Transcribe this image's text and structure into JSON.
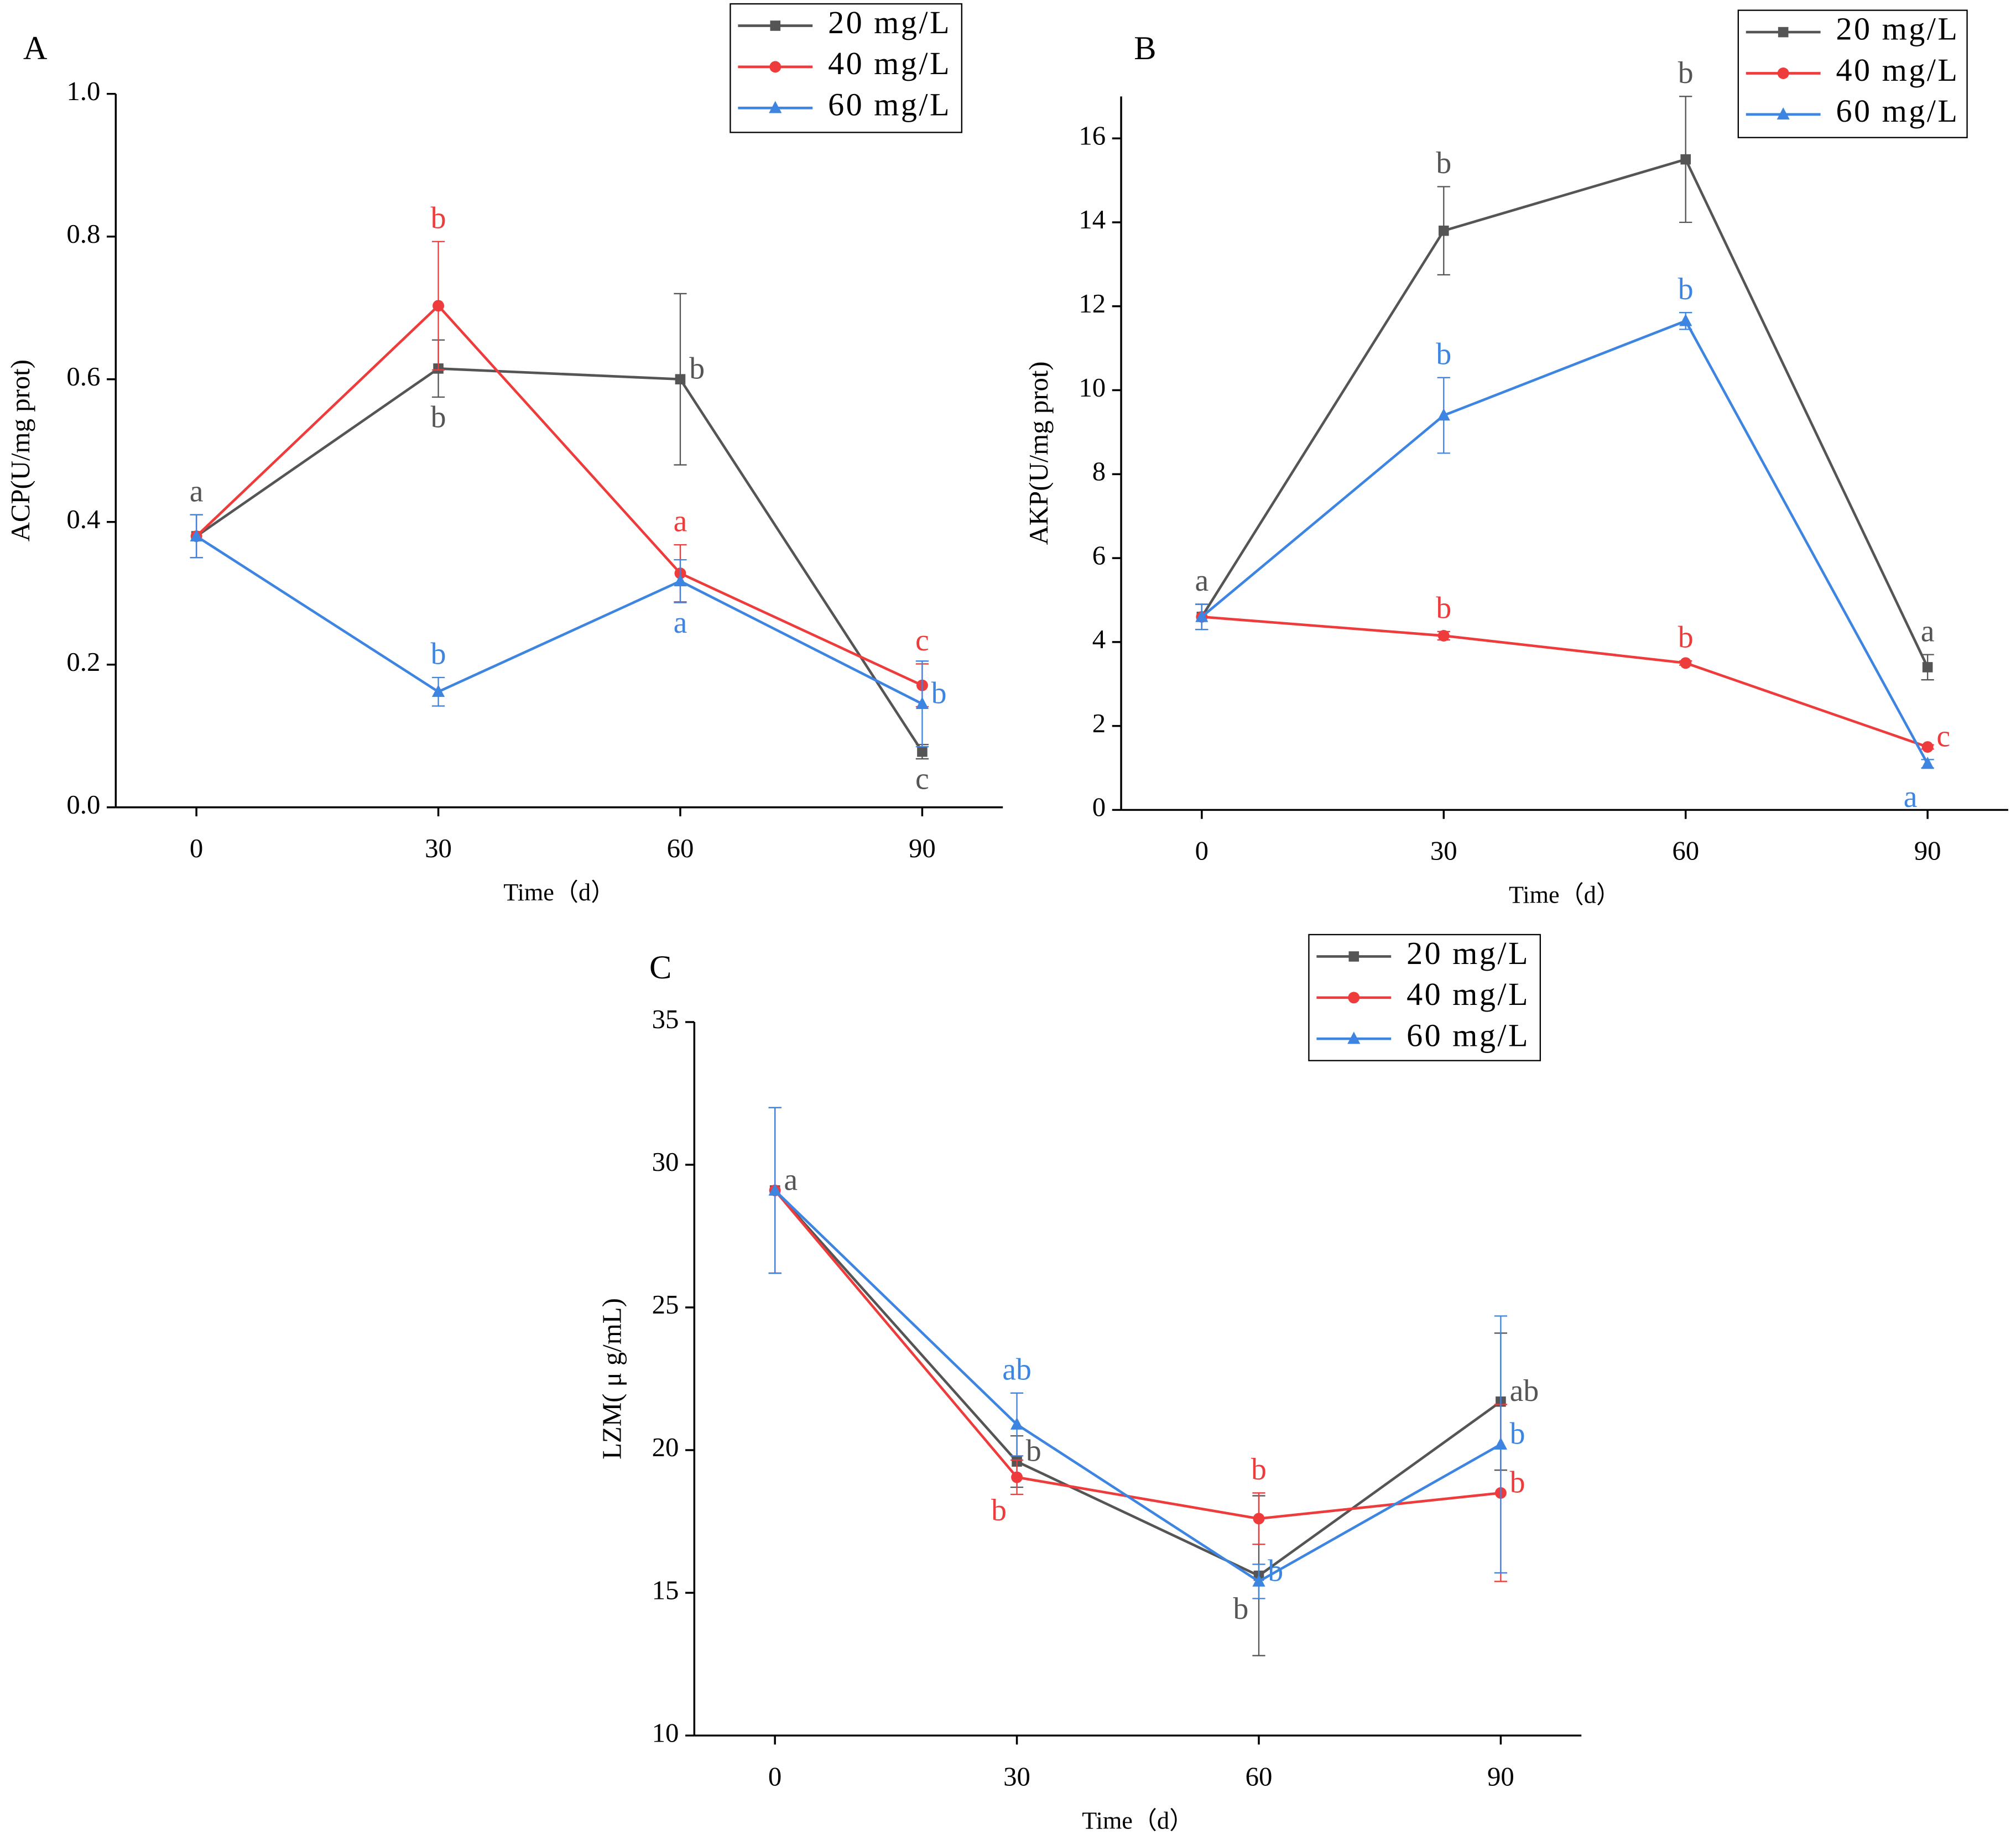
{
  "chart_data": [
    {
      "type": "line",
      "panel_label": "A",
      "ylabel": "ACP(U/mg prot)",
      "xlabel": "Time（d）",
      "x": [
        0,
        30,
        60,
        90
      ],
      "xlim": [
        -10,
        100
      ],
      "xticks": [
        0,
        30,
        60,
        90
      ],
      "ylim": [
        0,
        1
      ],
      "yticks": [
        {
          "value": 0,
          "label": "0.0"
        },
        0.2,
        0.4,
        0.6,
        0.8,
        {
          "value": 1,
          "label": "1.0"
        }
      ],
      "legend": "top-right",
      "series": [
        {
          "name": "20 mg/L",
          "color": "#555555",
          "marker": "square",
          "values": [
            0.38,
            0.615,
            0.6,
            0.078
          ],
          "errors": [
            0.03,
            0.04,
            0.12,
            0.01
          ],
          "labels": [
            "a",
            "b",
            "b",
            "c"
          ]
        },
        {
          "name": "40 mg/L",
          "color": "#ee3b3b",
          "marker": "circle",
          "values": [
            0.38,
            0.703,
            0.328,
            0.171
          ],
          "errors": [
            0.03,
            0.09,
            0.04,
            0.03
          ],
          "labels": [
            null,
            "b",
            "a",
            "c"
          ]
        },
        {
          "name": "60 mg/L",
          "color": "#3d85e0",
          "marker": "triangle",
          "values": [
            0.38,
            0.162,
            0.317,
            0.145
          ],
          "errors": [
            0.03,
            0.02,
            0.03,
            0.06
          ],
          "labels": [
            null,
            "b",
            "a",
            "b"
          ]
        }
      ]
    },
    {
      "type": "line",
      "panel_label": "B",
      "ylabel": "AKP(U/mg prot)",
      "xlabel": "Time（d）",
      "x": [
        0,
        30,
        60,
        90
      ],
      "xlim": [
        -10,
        100
      ],
      "xticks": [
        0,
        30,
        60,
        90
      ],
      "ylim": [
        0,
        17
      ],
      "yticks": [
        0,
        2,
        4,
        6,
        8,
        10,
        12,
        14,
        16
      ],
      "legend": "top-right",
      "series": [
        {
          "name": "20 mg/L",
          "color": "#555555",
          "marker": "square",
          "values": [
            4.6,
            13.8,
            15.5,
            3.4
          ],
          "errors": [
            0.3,
            1.05,
            1.5,
            0.3
          ],
          "labels": [
            "a",
            "b",
            "b",
            "a"
          ]
        },
        {
          "name": "40 mg/L",
          "color": "#ee3b3b",
          "marker": "circle",
          "values": [
            4.6,
            4.15,
            3.5,
            1.5
          ],
          "errors": [
            0.3,
            0.1,
            0.05,
            0.05
          ],
          "labels": [
            null,
            "b",
            "b",
            "c"
          ]
        },
        {
          "name": "60 mg/L",
          "color": "#3d85e0",
          "marker": "triangle",
          "values": [
            4.6,
            9.4,
            11.65,
            1.1
          ],
          "errors": [
            0.3,
            0.9,
            0.2,
            0.1
          ],
          "labels": [
            null,
            "b",
            "b",
            "a"
          ]
        }
      ]
    },
    {
      "type": "line",
      "panel_label": "C",
      "ylabel": "LZM( μ g/mL)",
      "xlabel": "Time（d）",
      "x": [
        0,
        30,
        60,
        90
      ],
      "xlim": [
        -10,
        100
      ],
      "xticks": [
        0,
        30,
        60,
        90
      ],
      "ylim": [
        10,
        35
      ],
      "yticks": [
        10,
        15,
        20,
        25,
        30,
        35
      ],
      "legend": "top-right",
      "series": [
        {
          "name": "20 mg/L",
          "color": "#555555",
          "marker": "square",
          "values": [
            29.1,
            19.6,
            15.6,
            21.7
          ],
          "errors": [
            2.9,
            0.9,
            2.8,
            2.4
          ],
          "labels": [
            "a",
            "b",
            "b",
            "ab"
          ]
        },
        {
          "name": "40 mg/L",
          "color": "#ee3b3b",
          "marker": "circle",
          "values": [
            29.1,
            19.05,
            17.6,
            18.5
          ],
          "errors": [
            2.9,
            0.6,
            0.9,
            3.1
          ],
          "labels": [
            null,
            "b",
            "b",
            "b"
          ]
        },
        {
          "name": "60 mg/L",
          "color": "#3d85e0",
          "marker": "triangle",
          "values": [
            29.1,
            20.9,
            15.4,
            20.2
          ],
          "errors": [
            2.9,
            1.1,
            0.6,
            4.5
          ],
          "labels": [
            null,
            "ab",
            "b",
            "b"
          ]
        }
      ]
    }
  ]
}
